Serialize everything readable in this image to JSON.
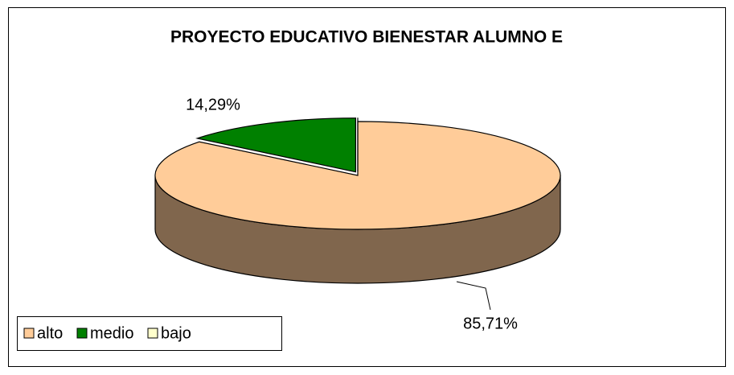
{
  "chart_data": {
    "type": "pie3d",
    "title": "PROYECTO EDUCATIVO BIENESTAR ALUMNO E",
    "categories": [
      "alto",
      "medio",
      "bajo"
    ],
    "values": [
      85.71,
      14.29,
      0
    ],
    "value_labels": [
      "85,71%",
      "14,29%",
      null
    ],
    "colors": [
      "#FFCC99",
      "#008000",
      "#FFFFCC"
    ],
    "side_colors": [
      "#80664D",
      "#004000",
      "#808066"
    ],
    "legend": "bottom-left"
  }
}
